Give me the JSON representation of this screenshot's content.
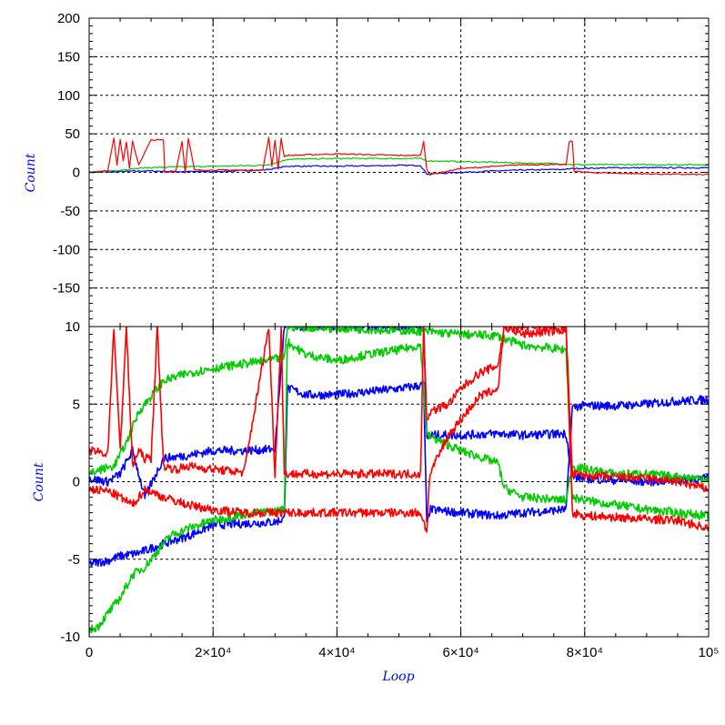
{
  "chart_data": [
    {
      "type": "line",
      "panel": "top",
      "ylabel": "Count",
      "xlabel": "",
      "xlim": [
        0,
        100000
      ],
      "ylim": [
        -200,
        200
      ],
      "yticks": [
        {
          "value": 200,
          "label": "200"
        },
        {
          "value": 150,
          "label": "150"
        },
        {
          "value": 100,
          "label": "100"
        },
        {
          "value": 50,
          "label": "50"
        },
        {
          "value": 0,
          "label": "0"
        },
        {
          "value": -50,
          "label": "-50"
        },
        {
          "value": -100,
          "label": "-100"
        },
        {
          "value": -150,
          "label": "-150"
        }
      ],
      "grid": true,
      "series": [
        {
          "color": "#0000ff",
          "x": [
            0,
            5000,
            9000,
            14000,
            20000,
            28000,
            30000,
            32000,
            40000,
            50000,
            53500,
            54500,
            60000,
            66000,
            70000,
            77000,
            78000,
            85000,
            100000
          ],
          "values": [
            0,
            1,
            2,
            1,
            1,
            3,
            5,
            8,
            8,
            9,
            9,
            -2,
            0,
            2,
            3,
            4,
            5,
            6,
            6
          ]
        },
        {
          "color": "#00cc00",
          "x": [
            0,
            5000,
            9000,
            14000,
            20000,
            28000,
            30000,
            32000,
            40000,
            50000,
            53500,
            54500,
            60000,
            66000,
            70000,
            77000,
            78000,
            85000,
            100000
          ],
          "values": [
            0,
            3,
            6,
            7,
            8,
            9,
            12,
            17,
            18,
            18,
            18,
            15,
            14,
            13,
            12,
            11,
            10,
            10,
            10
          ]
        },
        {
          "color": "#ff0000",
          "x": [
            0,
            3000,
            4000,
            4500,
            5000,
            5500,
            6000,
            6500,
            7000,
            8000,
            10000,
            11000,
            12000,
            12200,
            14000,
            15000,
            15500,
            16000,
            17000,
            28000,
            29000,
            29500,
            30000,
            30500,
            31000,
            31500,
            32000,
            40000,
            50000,
            53500,
            54000,
            54500,
            55000,
            60000,
            66000,
            70000,
            77000,
            77500,
            78000,
            78300,
            80000,
            90000,
            100000
          ],
          "values": [
            0,
            2,
            45,
            10,
            42,
            15,
            40,
            5,
            40,
            10,
            42,
            42,
            42,
            0,
            2,
            40,
            0,
            44,
            3,
            3,
            45,
            8,
            42,
            5,
            44,
            20,
            22,
            24,
            22,
            22,
            40,
            5,
            -3,
            5,
            8,
            10,
            10,
            40,
            40,
            2,
            0,
            -2,
            -3
          ]
        }
      ]
    },
    {
      "type": "line",
      "panel": "bottom",
      "ylabel": "Count",
      "xlabel": "Loop",
      "xlim": [
        0,
        100000
      ],
      "ylim": [
        -10,
        10
      ],
      "xticks": [
        {
          "value": 0,
          "label": "0"
        },
        {
          "value": 20000,
          "label": "2×10⁴"
        },
        {
          "value": 40000,
          "label": "4×10⁴"
        },
        {
          "value": 60000,
          "label": "6×10⁴"
        },
        {
          "value": 80000,
          "label": "8×10⁴"
        },
        {
          "value": 100000,
          "label": "10⁵"
        }
      ],
      "yticks": [
        {
          "value": 10,
          "label": "10"
        },
        {
          "value": 5,
          "label": "5"
        },
        {
          "value": 0,
          "label": "0"
        },
        {
          "value": -5,
          "label": "-5"
        },
        {
          "value": -10,
          "label": "-10"
        }
      ],
      "grid": true,
      "series": [
        {
          "color": "#0000ff",
          "name_hidden": true,
          "x": [
            0,
            3000,
            5000,
            8000,
            12000,
            16000,
            20000,
            25000,
            30000,
            31500,
            32000,
            33000,
            35000,
            40000,
            45000,
            50000,
            53500,
            54000,
            54500,
            55000,
            60000,
            66000,
            70000,
            77000,
            78000,
            80000,
            85000,
            90000,
            95000,
            100000
          ],
          "values": [
            -5.3,
            -5.1,
            -4.8,
            -4.6,
            -4.0,
            -3.5,
            -2.8,
            -2.7,
            -2.6,
            -2.4,
            6.0,
            5.9,
            5.6,
            5.6,
            5.8,
            6.0,
            6.2,
            6.3,
            -2.8,
            -1.8,
            -2.0,
            -2.2,
            -2.0,
            -1.8,
            4.8,
            4.9,
            4.9,
            5.0,
            5.2,
            5.3
          ]
        },
        {
          "color": "#0000ff",
          "x": [
            0,
            3000,
            5000,
            7000,
            9000,
            12000,
            16000,
            20000,
            25000,
            30000,
            31500,
            53500,
            54000,
            54500,
            55000,
            60000,
            66000,
            70000,
            77000,
            78000,
            80000,
            85000,
            90000,
            95000,
            100000
          ],
          "values": [
            0.2,
            0.0,
            0.5,
            2.0,
            -1.0,
            1.5,
            1.7,
            2.0,
            2.0,
            2.1,
            10,
            10,
            10,
            2.8,
            3.0,
            3.0,
            3.1,
            3.0,
            3.1,
            0.3,
            0.2,
            0.1,
            0.0,
            0.1,
            0.2
          ]
        },
        {
          "color": "#00cc00",
          "x": [
            0,
            1500,
            3000,
            5000,
            7000,
            9000,
            11000,
            13000,
            16000,
            20000,
            25000,
            30000,
            31500,
            32000,
            35000,
            40000,
            45000,
            50000,
            53500,
            54500,
            60000,
            66000,
            67000,
            70000,
            77000,
            78000,
            80000,
            85000,
            90000,
            95000,
            100000
          ],
          "values": [
            -9.6,
            -9.3,
            -8.5,
            -7.5,
            -6.0,
            -5.5,
            -4.5,
            -3.5,
            -3.0,
            -2.5,
            -2.1,
            -1.9,
            -1.8,
            9.0,
            8.2,
            7.8,
            8.2,
            8.5,
            8.8,
            3.0,
            2.0,
            1.2,
            -0.4,
            -1.0,
            -1.2,
            1.0,
            0.8,
            0.5,
            0.5,
            0.3,
            0.2
          ]
        },
        {
          "color": "#00cc00",
          "x": [
            0,
            2000,
            4000,
            6000,
            8000,
            10000,
            12000,
            16000,
            20000,
            25000,
            30000,
            31500,
            32000,
            54000,
            60000,
            66000,
            67000,
            70000,
            77000,
            78000,
            80000,
            85000,
            90000,
            95000,
            100000
          ],
          "values": [
            0.5,
            0.8,
            1.0,
            2.5,
            4.5,
            5.5,
            6.5,
            7.0,
            7.3,
            7.6,
            7.9,
            8.0,
            10,
            9.7,
            9.5,
            9.4,
            9.2,
            8.8,
            8.5,
            -1.0,
            -1.2,
            -1.5,
            -1.8,
            -2.0,
            -2.2
          ]
        },
        {
          "color": "#ff0000",
          "x": [
            0,
            3000,
            4000,
            5000,
            6000,
            7000,
            8000,
            9000,
            10000,
            11000,
            12000,
            14000,
            16000,
            20000,
            25000,
            29000,
            30000,
            31000,
            31500,
            53500,
            54000,
            54500,
            55000,
            58000,
            60000,
            63000,
            66000,
            67000,
            70000,
            77000,
            78000,
            80000,
            85000,
            90000,
            95000,
            100000
          ],
          "values": [
            2.0,
            1.8,
            10,
            2.0,
            10,
            1.0,
            2.0,
            1.5,
            1.5,
            10,
            1.0,
            0.8,
            1.0,
            0.8,
            0.6,
            10,
            0.5,
            10,
            0.5,
            0.5,
            10,
            4.0,
            4.5,
            5.0,
            6.0,
            7.0,
            7.5,
            10,
            9.5,
            9.8,
            0.5,
            0.4,
            0.3,
            0.2,
            0.0,
            -0.5
          ]
        },
        {
          "color": "#ff0000",
          "x": [
            0,
            3000,
            5000,
            7000,
            9000,
            12000,
            16000,
            20000,
            25000,
            30000,
            31500,
            53500,
            54500,
            55000,
            58000,
            60000,
            63000,
            66000,
            67000,
            70000,
            77000,
            78000,
            80000,
            85000,
            90000,
            95000,
            100000
          ],
          "values": [
            -0.5,
            -0.6,
            -1.0,
            -1.5,
            -0.5,
            -1.0,
            -1.5,
            -1.8,
            -2.0,
            -2.0,
            -2.0,
            -2.0,
            -3.2,
            0.5,
            3.0,
            4.0,
            5.5,
            6.0,
            10,
            10,
            10,
            -2.0,
            -2.2,
            -2.3,
            -2.4,
            -2.5,
            -3.0
          ]
        }
      ]
    }
  ]
}
